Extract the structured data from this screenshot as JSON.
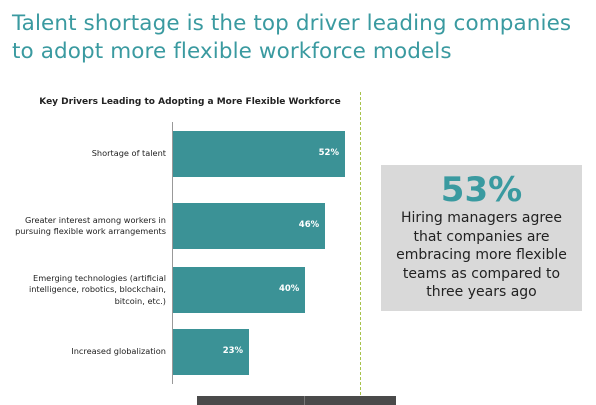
{
  "headline": "Talent shortage is the top driver leading companies to adopt more flexible workforce models",
  "chart_data": {
    "type": "bar",
    "orientation": "horizontal",
    "title": "Key Drivers Leading to Adopting a More Flexible Workforce",
    "categories": [
      "Shortage of talent",
      "Greater interest among workers in pursuing flexible work arrangements",
      "Emerging technologies (artificial intelligence, robotics, blockchain, bitcoin, etc.)",
      "Increased globalization"
    ],
    "category_lines": [
      [
        "Shortage of talent"
      ],
      [
        "Greater interest among workers in",
        "pursuing flexible work arrangements"
      ],
      [
        "Emerging technologies (artificial",
        "intelligence, robotics, blockchain,",
        "bitcoin, etc.)"
      ],
      [
        "Increased globalization"
      ]
    ],
    "values": [
      52,
      46,
      40,
      23
    ],
    "value_labels": [
      "52%",
      "46%",
      "40%",
      "23%"
    ],
    "xlim": [
      0,
      100
    ],
    "bar_color": "#3b9296"
  },
  "callout": {
    "stat": "53%",
    "text": "Hiring managers agree that companies are embracing more flexible teams as compared to three years ago"
  },
  "colors": {
    "accent": "#3a9aa0",
    "divider": "#a7c24a",
    "callout_bg": "#d9d9d9"
  }
}
